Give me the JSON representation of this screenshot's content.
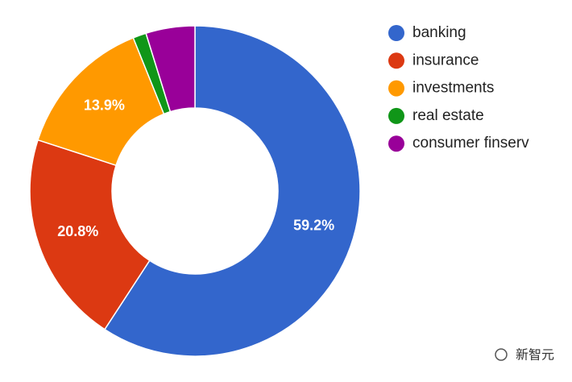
{
  "chart_data": {
    "type": "donut",
    "categories": [
      "banking",
      "insurance",
      "investments",
      "real estate",
      "consumer finserv"
    ],
    "values": [
      59.2,
      20.8,
      13.9,
      1.3,
      4.8
    ],
    "value_labels": [
      "59.2%",
      "20.8%",
      "13.9%",
      null,
      null
    ],
    "colors": [
      "#3366cc",
      "#dc3912",
      "#ff9900",
      "#109618",
      "#990099"
    ],
    "legend": "right"
  },
  "watermark": "新智元"
}
